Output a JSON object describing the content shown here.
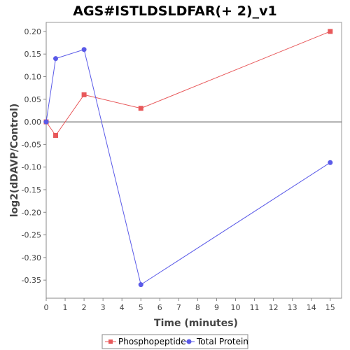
{
  "chart_data": {
    "type": "line",
    "title": "AGS#ISTLDSLDFAR(+ 2)_v1",
    "xlabel": "Time (minutes)",
    "ylabel": "log2(dDAVP/Control)",
    "xlim": [
      0,
      15.6
    ],
    "ylim": [
      -0.39,
      0.22
    ],
    "x_ticks": [
      0,
      1,
      2,
      3,
      4,
      5,
      6,
      7,
      8,
      9,
      10,
      11,
      12,
      13,
      14,
      15
    ],
    "y_ticks": [
      -0.35,
      -0.3,
      -0.25,
      -0.2,
      -0.15,
      -0.1,
      -0.05,
      0.0,
      0.05,
      0.1,
      0.15,
      0.2
    ],
    "y_tick_labels": [
      "-0.35",
      "-0.30",
      "-0.25",
      "-0.20",
      "-0.15",
      "-0.10",
      "-0.05",
      "0.00",
      "0.05",
      "0.10",
      "0.15",
      "0.20"
    ],
    "zero_line": true,
    "grid": false,
    "legend_position": "bottom-center",
    "series": [
      {
        "name": "Phosphopeptide",
        "marker": "square",
        "color": "#e8585a",
        "x": [
          0,
          0.5,
          2,
          5,
          15
        ],
        "y": [
          0.0,
          -0.03,
          0.06,
          0.03,
          0.2
        ]
      },
      {
        "name": "Total Protein",
        "marker": "circle",
        "color": "#5a5ae8",
        "x": [
          0,
          0.5,
          2,
          5,
          15
        ],
        "y": [
          0.0,
          0.14,
          0.16,
          -0.36,
          -0.09
        ]
      }
    ]
  }
}
